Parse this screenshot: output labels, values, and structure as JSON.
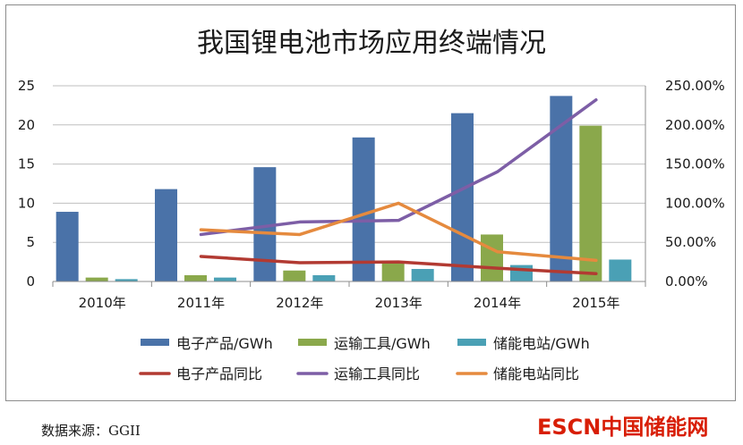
{
  "chart_data": {
    "type": "bar",
    "title": "我国锂电池市场应用终端情况",
    "categories": [
      "2010年",
      "2011年",
      "2012年",
      "2013年",
      "2014年",
      "2015年"
    ],
    "y_left": {
      "ylim": [
        0,
        25
      ],
      "ticks": [
        0,
        5,
        10,
        15,
        20,
        25
      ],
      "tick_labels": [
        "0",
        "5",
        "10",
        "15",
        "20",
        "25"
      ]
    },
    "y_right": {
      "ylim": [
        0,
        250
      ],
      "ticks": [
        0,
        50,
        100,
        150,
        200,
        250
      ],
      "tick_labels": [
        "0.00%",
        "50.00%",
        "100.00%",
        "150.00%",
        "200.00%",
        "250.00%"
      ]
    },
    "bar_series": [
      {
        "name": "电子产品/GWh",
        "color": "#4a72a8",
        "values": [
          8.9,
          11.8,
          14.6,
          18.4,
          21.5,
          23.7
        ]
      },
      {
        "name": "运输工具/GWh",
        "color": "#8aa84b",
        "values": [
          0.5,
          0.8,
          1.4,
          2.5,
          6.0,
          19.9
        ]
      },
      {
        "name": "储能电站/GWh",
        "color": "#4aa0b5",
        "values": [
          0.3,
          0.5,
          0.8,
          1.6,
          2.1,
          2.8
        ]
      }
    ],
    "line_series": [
      {
        "name": "电子产品同比",
        "color": "#b23a32",
        "values": [
          null,
          32,
          24,
          25,
          17,
          10
        ]
      },
      {
        "name": "运输工具同比",
        "color": "#7d5ea6",
        "values": [
          null,
          60,
          76,
          78,
          140,
          232
        ]
      },
      {
        "name": "储能电站同比",
        "color": "#e58a3e",
        "values": [
          null,
          66,
          60,
          100,
          38,
          27
        ]
      }
    ]
  },
  "source_note": "数据来源：GGII",
  "logo_text": "ESCN中国储能网"
}
